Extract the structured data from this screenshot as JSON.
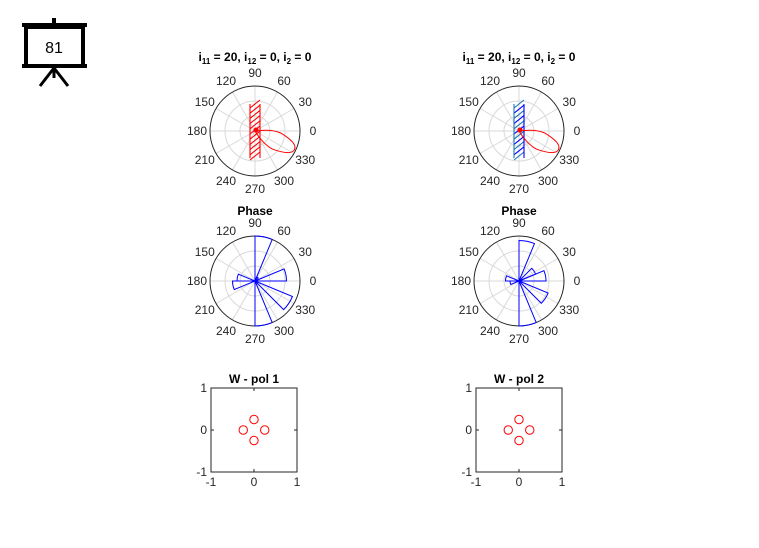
{
  "slide": {
    "number": "81",
    "icon": "projector-screen-icon"
  },
  "colors": {
    "red": "#ff0000",
    "blue": "#0000ff",
    "steel": "#1f77b4",
    "grid": "#d9d9d9",
    "axis": "#262626"
  },
  "chart_data": [
    {
      "type": "polar",
      "title": {
        "main": "i",
        "parts": [
          [
            "11",
            " = 20, i"
          ],
          [
            "12",
            " = 0, i"
          ],
          [
            "2",
            " = 0"
          ]
        ]
      },
      "angle_ticks": [
        "0",
        "30",
        "60",
        "90",
        "120",
        "150",
        "180",
        "210",
        "240",
        "270",
        "300",
        "330"
      ],
      "main_lobe": {
        "angle_deg": -25,
        "relative_length": 0.97,
        "color": "red"
      },
      "hatch_colors": [
        "red"
      ]
    },
    {
      "type": "polar",
      "title": {
        "main": "i",
        "parts": [
          [
            "11",
            " = 20, i"
          ],
          [
            "12",
            " = 0, i"
          ],
          [
            "2",
            " = 0"
          ]
        ]
      },
      "angle_ticks": [
        "0",
        "30",
        "60",
        "90",
        "120",
        "150",
        "180",
        "210",
        "240",
        "270",
        "300",
        "330"
      ],
      "main_lobe": {
        "angle_deg": -25,
        "relative_length": 0.97,
        "color": "red"
      },
      "hatch_colors": [
        "steel",
        "blue"
      ]
    },
    {
      "type": "polar",
      "title": "Phase",
      "angle_ticks": [
        "0",
        "30",
        "60",
        "90",
        "120",
        "150",
        "180",
        "210",
        "240",
        "270",
        "300",
        "330"
      ],
      "sectors": [
        {
          "from_deg": 0,
          "to_deg": 22.5,
          "r": 0.7
        },
        {
          "from_deg": 45,
          "to_deg": 67.5,
          "r": 0.1
        },
        {
          "from_deg": 67.5,
          "to_deg": 90,
          "r": 1.0
        },
        {
          "from_deg": 157.5,
          "to_deg": 180,
          "r": 0.4
        },
        {
          "from_deg": 180,
          "to_deg": 202.5,
          "r": 0.5
        },
        {
          "from_deg": 270,
          "to_deg": 292.5,
          "r": 1.0
        },
        {
          "from_deg": 315,
          "to_deg": 337.5,
          "r": 0.9
        }
      ],
      "color": "blue"
    },
    {
      "type": "polar",
      "title": "Phase",
      "angle_ticks": [
        "0",
        "30",
        "60",
        "90",
        "120",
        "150",
        "180",
        "210",
        "240",
        "270",
        "300",
        "330"
      ],
      "sectors": [
        {
          "from_deg": 0,
          "to_deg": 22.5,
          "r": 0.6
        },
        {
          "from_deg": 22.5,
          "to_deg": 45,
          "r": 0.4
        },
        {
          "from_deg": 67.5,
          "to_deg": 90,
          "r": 0.9
        },
        {
          "from_deg": 157.5,
          "to_deg": 180,
          "r": 0.3
        },
        {
          "from_deg": 180,
          "to_deg": 202.5,
          "r": 0.2
        },
        {
          "from_deg": 270,
          "to_deg": 292.5,
          "r": 1.0
        },
        {
          "from_deg": 315,
          "to_deg": 337.5,
          "r": 0.7
        }
      ],
      "color": "blue"
    },
    {
      "type": "scatter",
      "title": "W - pol 1",
      "xlim": [
        -1,
        1
      ],
      "ylim": [
        -1,
        1
      ],
      "xticks": [
        "-1",
        "0",
        "1"
      ],
      "yticks": [
        "-1",
        "0",
        "1"
      ],
      "points": [
        [
          0,
          0.25
        ],
        [
          -0.25,
          0
        ],
        [
          0.25,
          0
        ],
        [
          0,
          -0.25
        ]
      ],
      "marker": "circle",
      "color": "red"
    },
    {
      "type": "scatter",
      "title": "W - pol 2",
      "xlim": [
        -1,
        1
      ],
      "ylim": [
        -1,
        1
      ],
      "xticks": [
        "-1",
        "0",
        "1"
      ],
      "yticks": [
        "-1",
        "0",
        "1"
      ],
      "points": [
        [
          0,
          0.25
        ],
        [
          -0.25,
          0
        ],
        [
          0.25,
          0
        ],
        [
          0,
          -0.25
        ]
      ],
      "marker": "circle",
      "color": "red"
    }
  ]
}
